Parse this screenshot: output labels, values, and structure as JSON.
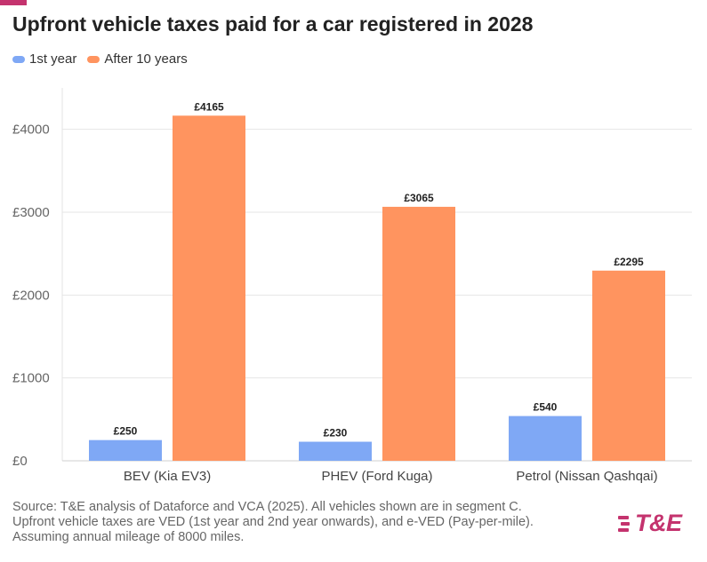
{
  "brand": {
    "accent_color": "#c4336e",
    "logo_text": "T&E"
  },
  "header": {
    "title": "Upfront vehicle taxes paid for a car registered in 2028"
  },
  "legend": {
    "items": [
      {
        "label": "1st year",
        "color": "#7fa8f5"
      },
      {
        "label": "After 10 years",
        "color": "#ff945f"
      }
    ]
  },
  "chart_data": {
    "type": "bar",
    "title": "Upfront vehicle taxes paid for a car registered in 2028",
    "xlabel": "",
    "ylabel": "",
    "ylim": [
      0,
      4500
    ],
    "yticks": [
      0,
      1000,
      2000,
      3000,
      4000
    ],
    "ytick_labels": [
      "£0",
      "£1000",
      "£2000",
      "£3000",
      "£4000"
    ],
    "grid": true,
    "legend_position": "top-left",
    "categories": [
      "BEV (Kia EV3)",
      "PHEV (Ford Kuga)",
      "Petrol (Nissan Qashqai)"
    ],
    "series": [
      {
        "name": "1st year",
        "color": "#7fa8f5",
        "values": [
          250,
          230,
          540
        ],
        "labels": [
          "£250",
          "£230",
          "£540"
        ]
      },
      {
        "name": "After 10 years",
        "color": "#ff945f",
        "values": [
          4165,
          3065,
          2295
        ],
        "labels": [
          "£4165",
          "£3065",
          "£2295"
        ]
      }
    ]
  },
  "footer": {
    "source_lines": [
      "Source: T&E analysis of Dataforce and VCA (2025). All vehicles shown are in segment C.",
      "Upfront vehicle taxes are VED (1st year and 2nd year onwards), and e-VED (Pay-per-mile).",
      "Assuming annual mileage of 8000 miles."
    ]
  }
}
